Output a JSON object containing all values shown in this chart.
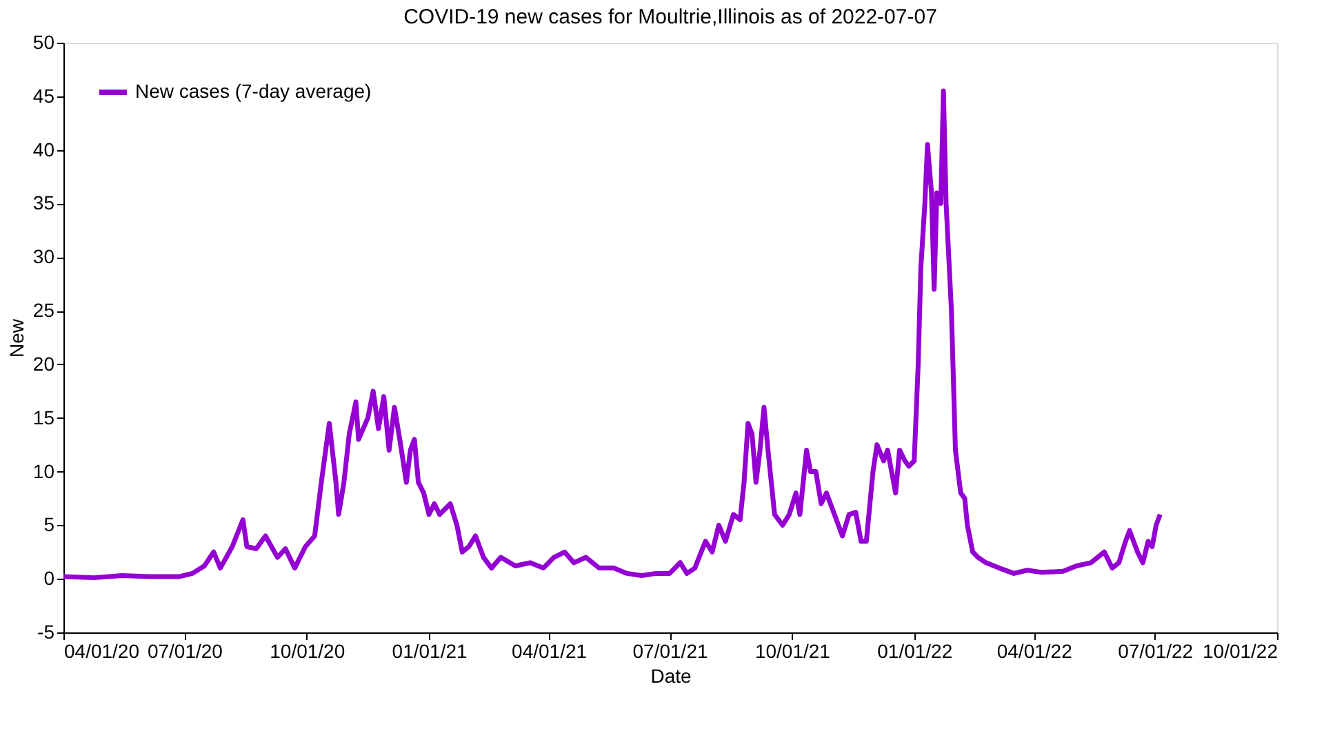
{
  "chart_data": {
    "type": "line",
    "title": "COVID-19 new cases for Moultrie,Illinois as of 2022-07-07",
    "xlabel": "Date",
    "ylabel": "New",
    "x": [
      "2020-04-01",
      "2020-04-24",
      "2020-05-15",
      "2020-06-05",
      "2020-06-27",
      "2020-07-07",
      "2020-07-16",
      "2020-07-23",
      "2020-07-28",
      "2020-08-06",
      "2020-08-14",
      "2020-08-17",
      "2020-08-24",
      "2020-08-31",
      "2020-09-09",
      "2020-09-15",
      "2020-09-22",
      "2020-09-30",
      "2020-10-07",
      "2020-10-12",
      "2020-10-18",
      "2020-10-23",
      "2020-10-25",
      "2020-10-29",
      "2020-11-02",
      "2020-11-07",
      "2020-11-09",
      "2020-11-16",
      "2020-11-20",
      "2020-11-24",
      "2020-11-28",
      "2020-12-02",
      "2020-12-06",
      "2020-12-10",
      "2020-12-15",
      "2020-12-18",
      "2020-12-21",
      "2020-12-24",
      "2020-12-28",
      "2021-01-01",
      "2021-01-05",
      "2021-01-09",
      "2021-01-13",
      "2021-01-17",
      "2021-01-22",
      "2021-01-26",
      "2021-01-31",
      "2021-02-05",
      "2021-02-11",
      "2021-02-17",
      "2021-02-24",
      "2021-03-07",
      "2021-03-18",
      "2021-03-28",
      "2021-04-05",
      "2021-04-13",
      "2021-04-20",
      "2021-04-29",
      "2021-05-09",
      "2021-05-20",
      "2021-05-30",
      "2021-06-10",
      "2021-06-21",
      "2021-07-01",
      "2021-07-09",
      "2021-07-14",
      "2021-07-20",
      "2021-07-28",
      "2021-08-02",
      "2021-08-07",
      "2021-08-12",
      "2021-08-18",
      "2021-08-23",
      "2021-08-26",
      "2021-08-29",
      "2021-09-01",
      "2021-09-04",
      "2021-09-07",
      "2021-09-10",
      "2021-09-13",
      "2021-09-18",
      "2021-09-24",
      "2021-09-29",
      "2021-10-04",
      "2021-10-07",
      "2021-10-12",
      "2021-10-15",
      "2021-10-19",
      "2021-10-23",
      "2021-10-27",
      "2021-11-02",
      "2021-11-08",
      "2021-11-13",
      "2021-11-18",
      "2021-11-22",
      "2021-11-26",
      "2021-12-01",
      "2021-12-04",
      "2021-12-09",
      "2021-12-12",
      "2021-12-15",
      "2021-12-18",
      "2021-12-21",
      "2021-12-25",
      "2021-12-28",
      "2022-01-01",
      "2022-01-04",
      "2022-01-06",
      "2022-01-09",
      "2022-01-11",
      "2022-01-14",
      "2022-01-16",
      "2022-01-18",
      "2022-01-21",
      "2022-01-23",
      "2022-01-25",
      "2022-01-27",
      "2022-01-29",
      "2022-02-01",
      "2022-02-05",
      "2022-02-08",
      "2022-02-10",
      "2022-02-14",
      "2022-02-18",
      "2022-02-24",
      "2022-03-06",
      "2022-03-17",
      "2022-03-27",
      "2022-04-07",
      "2022-04-23",
      "2022-05-03",
      "2022-05-14",
      "2022-05-24",
      "2022-05-30",
      "2022-06-04",
      "2022-06-09",
      "2022-06-12",
      "2022-06-18",
      "2022-06-22",
      "2022-06-26",
      "2022-06-29",
      "2022-07-02",
      "2022-07-05"
    ],
    "series": [
      {
        "name": "New cases (7-day average)",
        "color": "#9400d3",
        "values": [
          0.2,
          0.1,
          0.3,
          0.2,
          0.2,
          0.5,
          1.2,
          2.5,
          1.0,
          3.0,
          5.5,
          3.0,
          2.8,
          4.0,
          2.0,
          2.8,
          1.0,
          3.0,
          4.0,
          9.0,
          14.5,
          9.0,
          6.0,
          9.0,
          13.5,
          16.5,
          13.0,
          15.0,
          17.5,
          14.0,
          17.0,
          12.0,
          16.0,
          13.0,
          9.0,
          12.0,
          13.0,
          9.0,
          8.0,
          6.0,
          7.0,
          6.0,
          6.5,
          7.0,
          5.0,
          2.5,
          3.0,
          4.0,
          2.0,
          1.0,
          2.0,
          1.2,
          1.5,
          1.0,
          2.0,
          2.5,
          1.5,
          2.0,
          1.0,
          1.0,
          0.5,
          0.3,
          0.5,
          0.5,
          1.5,
          0.5,
          1.0,
          3.5,
          2.5,
          5.0,
          3.5,
          6.0,
          5.5,
          9.0,
          14.5,
          13.5,
          9.0,
          12.0,
          16.0,
          12.0,
          6.0,
          5.0,
          6.0,
          8.0,
          6.0,
          12.0,
          10.0,
          10.0,
          7.0,
          8.0,
          6.0,
          4.0,
          6.0,
          6.2,
          3.5,
          3.5,
          10.0,
          12.5,
          11.0,
          12.0,
          10.0,
          8.0,
          12.0,
          11.0,
          10.5,
          11.0,
          20.0,
          29.0,
          35.0,
          40.5,
          36.0,
          27.0,
          36.0,
          35.0,
          45.5,
          35.0,
          30.0,
          25.0,
          12.0,
          8.0,
          7.5,
          5.0,
          2.5,
          2.0,
          1.5,
          1.0,
          0.5,
          0.8,
          0.6,
          0.7,
          1.2,
          1.5,
          2.5,
          1.0,
          1.5,
          3.5,
          4.5,
          2.5,
          1.5,
          3.5,
          3.0,
          5.0,
          6.0
        ]
      }
    ],
    "xlim": [
      "2020-04-01",
      "2022-10-01"
    ],
    "xticks": [
      {
        "value": "2020-04-01",
        "label": "04/01/20"
      },
      {
        "value": "2020-07-01",
        "label": "07/01/20"
      },
      {
        "value": "2020-10-01",
        "label": "10/01/20"
      },
      {
        "value": "2021-01-01",
        "label": "01/01/21"
      },
      {
        "value": "2021-04-01",
        "label": "04/01/21"
      },
      {
        "value": "2021-07-01",
        "label": "07/01/21"
      },
      {
        "value": "2021-10-01",
        "label": "10/01/21"
      },
      {
        "value": "2022-01-01",
        "label": "01/01/22"
      },
      {
        "value": "2022-04-01",
        "label": "04/01/22"
      },
      {
        "value": "2022-07-01",
        "label": "07/01/22"
      },
      {
        "value": "2022-10-01",
        "label": "10/01/22"
      }
    ],
    "ylim": [
      -5,
      50
    ],
    "yticks": [
      -5,
      0,
      5,
      10,
      15,
      20,
      25,
      30,
      35,
      40,
      45,
      50
    ],
    "grid": false,
    "legend": "top left",
    "marker": "none",
    "line_style": "solid"
  }
}
